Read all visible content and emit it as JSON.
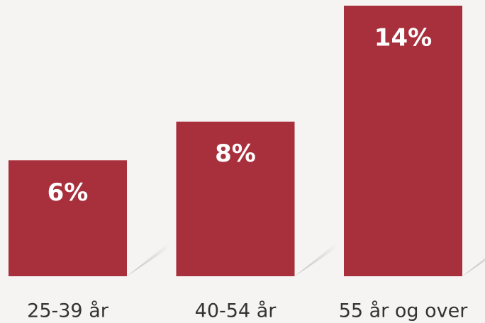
{
  "chart_data": {
    "type": "bar",
    "categories": [
      "25-39 år",
      "40-54 år",
      "55 år og over"
    ],
    "values": [
      6,
      8,
      14
    ],
    "value_labels": [
      "6%",
      "8%",
      "14%"
    ],
    "color": "#a8303c"
  }
}
